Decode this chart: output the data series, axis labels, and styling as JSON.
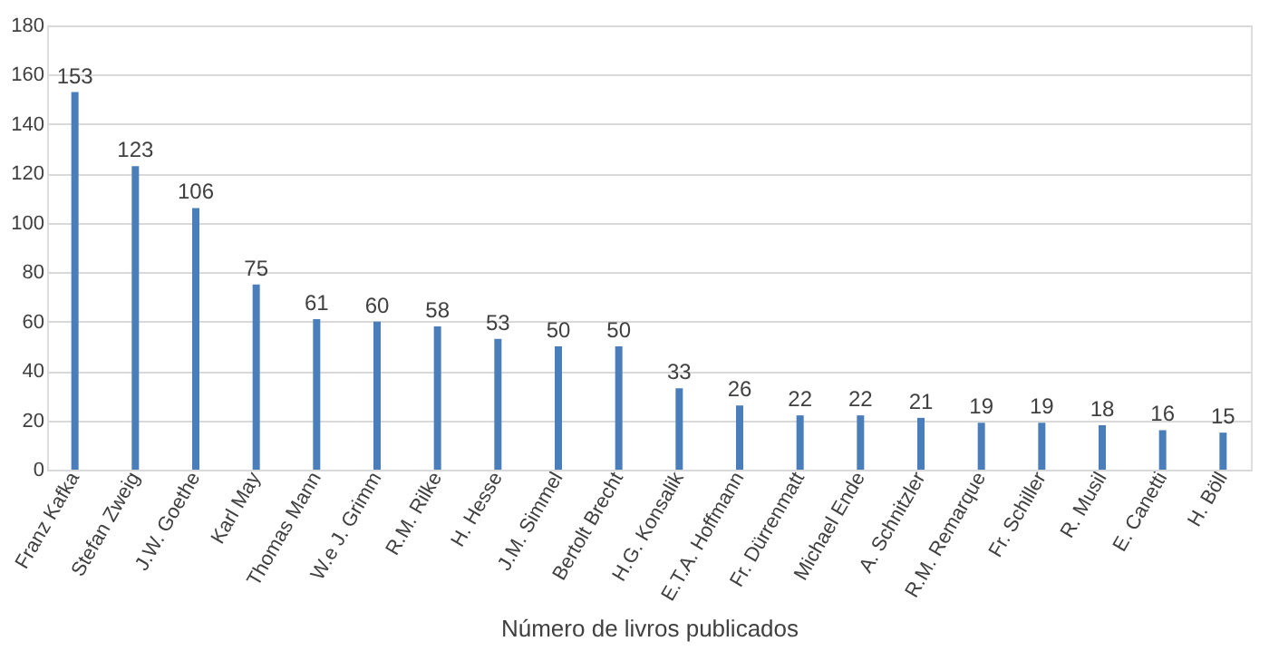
{
  "chart_data": {
    "type": "bar",
    "xlabel": "Número de livros publicados",
    "categories": [
      "Franz Kafka",
      "Stefan Zweig",
      "J.W. Goethe",
      "Karl May",
      "Thomas Mann",
      "W.e J. Grimm",
      "R.M. Rilke",
      "H. Hesse",
      "J.M. Simmel",
      "Bertolt Brecht",
      "H.G. Konsalik",
      "E.T.A. Hoffmann",
      "Fr. Dürrenmatt",
      "Michael Ende",
      "A. Schnitzler",
      "R.M. Remarque",
      "Fr. Schiller",
      "R. Musil",
      "E. Canetti",
      "H. Böll"
    ],
    "values": [
      153,
      123,
      106,
      75,
      61,
      60,
      58,
      53,
      50,
      50,
      33,
      26,
      22,
      22,
      21,
      19,
      19,
      18,
      16,
      15
    ],
    "color": "#4a7ebb",
    "ylim": [
      0,
      180
    ],
    "yticks": [
      0,
      20,
      40,
      60,
      80,
      100,
      120,
      140,
      160,
      180
    ],
    "grid": "y",
    "data_labels": true
  }
}
